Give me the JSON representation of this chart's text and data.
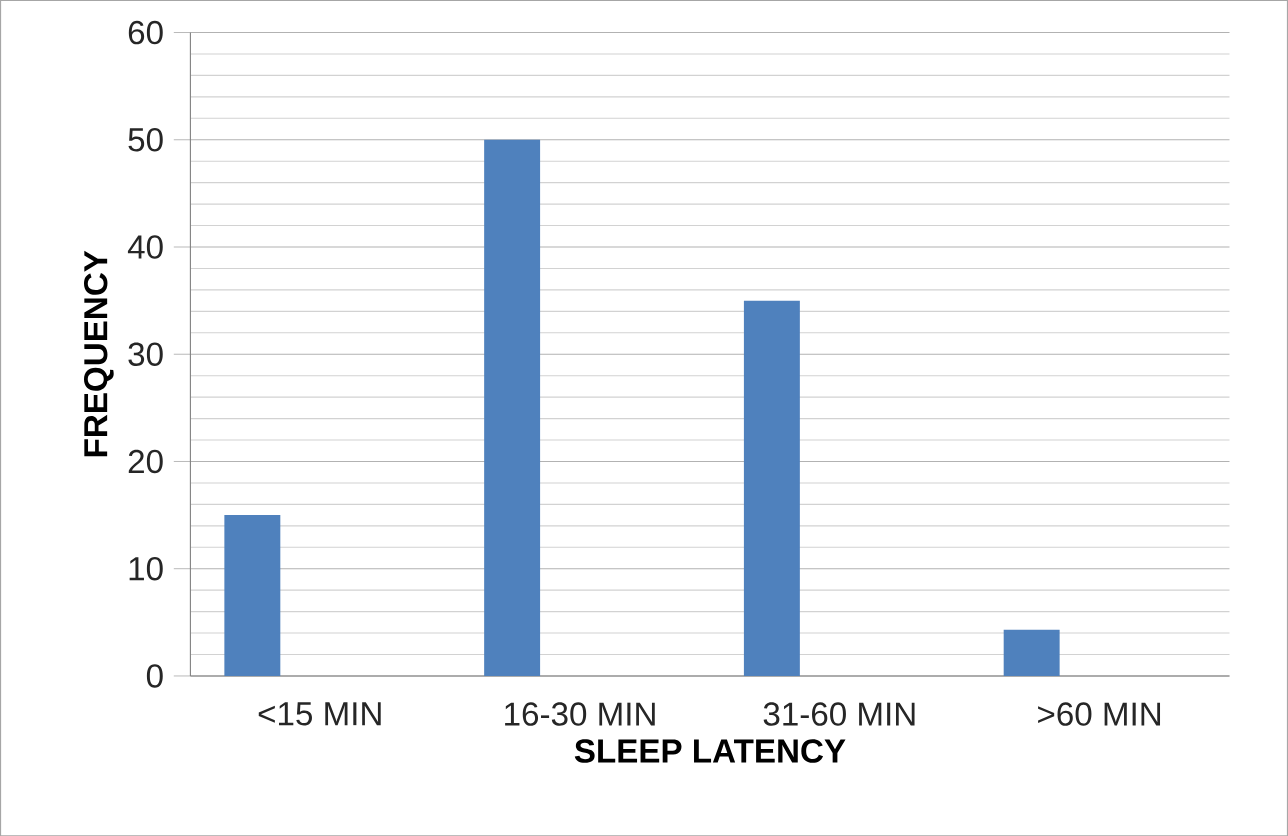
{
  "chart_data": {
    "type": "bar",
    "xlabel": "SLEEP LATENCY",
    "ylabel": "FREQUENCY",
    "categories": [
      "<15 MIN",
      "16-30 MIN",
      "31-60 MIN",
      ">60 MIN"
    ],
    "values": [
      15,
      50,
      35,
      4.3
    ],
    "color": "#4f81bd",
    "ylim": [
      0,
      60
    ],
    "yticks": [
      0,
      10,
      20,
      30,
      40,
      50,
      60
    ],
    "grid": "y"
  }
}
